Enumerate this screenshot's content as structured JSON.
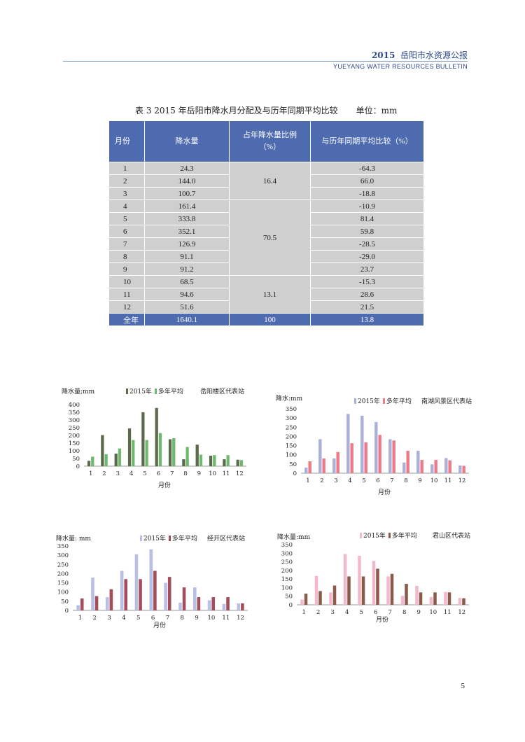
{
  "header": {
    "year": "2015",
    "title": "岳阳市水资源公报",
    "subtitle": "YUEYANG WATER RESOURCES BULLETIN"
  },
  "table": {
    "caption": "表 3    2015 年岳阳市降水月分配及与历年同期平均比较",
    "unit": "单位：mm",
    "headers": [
      "月份",
      "降水量",
      "占年降水量比例（%）",
      "与历年同期平均比较（%）"
    ],
    "rows": [
      {
        "month": "1",
        "rain": "24.3",
        "cmp": "-64.3"
      },
      {
        "month": "2",
        "rain": "144.0",
        "cmp": "66.0"
      },
      {
        "month": "3",
        "rain": "100.7",
        "cmp": "-18.8"
      },
      {
        "month": "4",
        "rain": "161.4",
        "cmp": "-10.9"
      },
      {
        "month": "5",
        "rain": "333.8",
        "cmp": "81.4"
      },
      {
        "month": "6",
        "rain": "352.1",
        "cmp": "59.8"
      },
      {
        "month": "7",
        "rain": "126.9",
        "cmp": "-28.5"
      },
      {
        "month": "8",
        "rain": "91.1",
        "cmp": "-29.0"
      },
      {
        "month": "9",
        "rain": "91.2",
        "cmp": "23.7"
      },
      {
        "month": "10",
        "rain": "68.5",
        "cmp": "-15.3"
      },
      {
        "month": "11",
        "rain": "94.6",
        "cmp": "28.6"
      },
      {
        "month": "12",
        "rain": "51.6",
        "cmp": "21.5"
      }
    ],
    "season_pct": [
      "16.4",
      "70.5",
      "13.1"
    ],
    "total": {
      "month": "全年",
      "rain": "1640.1",
      "pct": "100",
      "cmp": "13.8"
    }
  },
  "chart_data": [
    {
      "type": "bar",
      "title": "岳阳楼区代表站",
      "ylabel": "降水量;mm",
      "xlabel": "月份",
      "categories": [
        "1",
        "2",
        "3",
        "4",
        "5",
        "6",
        "7",
        "8",
        "9",
        "10",
        "11",
        "12"
      ],
      "ylim": [
        0,
        400
      ],
      "yticks": [
        0,
        50,
        100,
        150,
        200,
        250,
        300,
        350,
        400
      ],
      "series": [
        {
          "name": "2015年",
          "color": "#5a6a4a",
          "values": [
            35,
            202,
            82,
            245,
            350,
            378,
            175,
            45,
            140,
            68,
            45,
            42
          ]
        },
        {
          "name": "多年平均",
          "color": "#6fb86f",
          "values": [
            62,
            78,
            115,
            170,
            170,
            215,
            182,
            125,
            75,
            72,
            72,
            40
          ]
        }
      ]
    },
    {
      "type": "bar",
      "title": "南湖风景区代表站",
      "ylabel": "降水:mm",
      "xlabel": "月份",
      "categories": [
        "1",
        "2",
        "3",
        "4",
        "5",
        "6",
        "7",
        "8",
        "9",
        "10",
        "11",
        "12"
      ],
      "ylim": [
        0,
        350
      ],
      "yticks": [
        0,
        50,
        100,
        150,
        200,
        250,
        300,
        350
      ],
      "series": [
        {
          "name": "2015年",
          "color": "#aab0de",
          "values": [
            30,
            185,
            80,
            322,
            312,
            278,
            185,
            58,
            122,
            48,
            82,
            42
          ]
        },
        {
          "name": "多年平均",
          "color": "#ef7a86",
          "values": [
            65,
            80,
            115,
            163,
            168,
            208,
            178,
            122,
            72,
            72,
            70,
            40
          ]
        }
      ]
    },
    {
      "type": "bar",
      "title": "经开区代表站",
      "ylabel": "降水量: mm",
      "xlabel": "月份",
      "categories": [
        "1",
        "2",
        "3",
        "4",
        "5",
        "6",
        "7",
        "8",
        "9",
        "10",
        "11",
        "12"
      ],
      "ylim": [
        0,
        350
      ],
      "yticks": [
        0,
        50,
        100,
        150,
        200,
        250,
        300,
        350
      ],
      "series": [
        {
          "name": "2015年",
          "color": "#b8bfe6",
          "values": [
            28,
            178,
            72,
            215,
            305,
            332,
            150,
            42,
            125,
            55,
            35,
            38
          ]
        },
        {
          "name": "多年平均",
          "color": "#a34e5a",
          "values": [
            65,
            78,
            115,
            170,
            170,
            215,
            182,
            125,
            72,
            72,
            72,
            38
          ]
        }
      ]
    },
    {
      "type": "bar",
      "title": "君山区代表站",
      "ylabel": "降水量:mm",
      "xlabel": "月份",
      "categories": [
        "1",
        "2",
        "3",
        "4",
        "5",
        "6",
        "7",
        "8",
        "9",
        "10",
        "11",
        "12"
      ],
      "ylim": [
        0,
        350
      ],
      "yticks": [
        0,
        50,
        100,
        150,
        200,
        250,
        300,
        350
      ],
      "series": [
        {
          "name": "2015年",
          "color": "#f2b8cc",
          "values": [
            30,
            168,
            72,
            295,
            285,
            255,
            165,
            52,
            110,
            45,
            75,
            40
          ]
        },
        {
          "name": "多年平均",
          "color": "#8a5a4a",
          "values": [
            65,
            80,
            112,
            165,
            165,
            210,
            180,
            122,
            72,
            72,
            72,
            38
          ]
        }
      ]
    }
  ],
  "page_number": "5"
}
